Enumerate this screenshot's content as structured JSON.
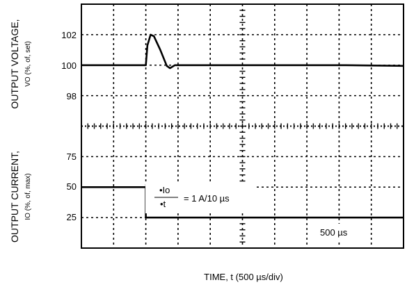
{
  "chart_data": [
    {
      "type": "line",
      "panel": "top",
      "ylabel": "OUTPUT VOLTAGE,",
      "ylabel_sub": "VO (%, of, set)",
      "yticks": [
        102,
        100,
        98
      ],
      "ylim": [
        96,
        104
      ],
      "series": [
        {
          "points": [
            [
              0,
              100
            ],
            [
              2,
              100
            ],
            [
              2.05,
              101.3
            ],
            [
              2.15,
              102
            ],
            [
              2.25,
              101.9
            ],
            [
              2.45,
              101
            ],
            [
              2.65,
              99.95
            ],
            [
              2.75,
              99.8
            ],
            [
              2.9,
              100
            ],
            [
              5,
              100
            ],
            [
              8.2,
              100
            ],
            [
              10,
              99.95
            ]
          ]
        }
      ]
    },
    {
      "type": "line",
      "panel": "bottom",
      "ylabel": "OUTPUT CURRENT,",
      "ylabel_sub": "IO (%, of, max)",
      "yticks": [
        75,
        50,
        25
      ],
      "ylim": [
        0,
        100
      ],
      "series": [
        {
          "points": [
            [
              0,
              50
            ],
            [
              2,
              50
            ],
            [
              2,
              25
            ],
            [
              10,
              25
            ]
          ]
        }
      ],
      "annotations": {
        "slew_numerator": "•Io",
        "slew_denominator": "•t",
        "slew_value": "= 1 A/10 µs",
        "timebase": "500 µs"
      }
    }
  ],
  "xaxis": {
    "label": "TIME, t (500 µs/div)",
    "divisions": 10
  },
  "colors": {
    "trace": "#000000",
    "grid": "#000000",
    "background": "#ffffff"
  }
}
